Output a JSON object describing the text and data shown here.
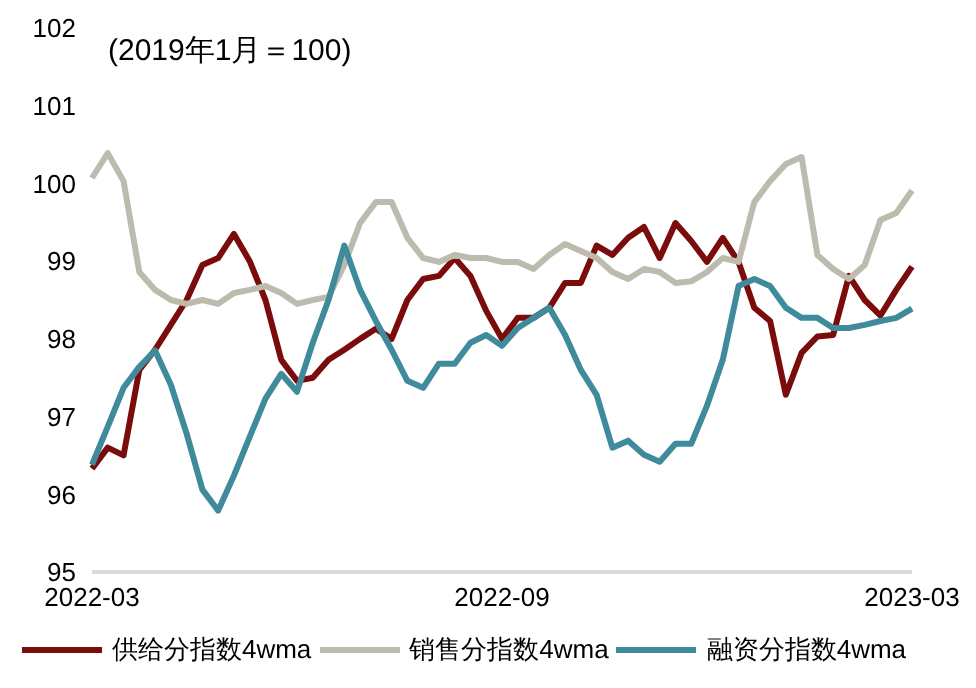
{
  "chart_data": {
    "type": "line",
    "title": "(2019年1月＝100)",
    "categories": [
      "2022-03",
      null,
      null,
      null,
      null,
      null,
      null,
      null,
      null,
      null,
      null,
      null,
      null,
      null,
      null,
      null,
      null,
      null,
      null,
      null,
      null,
      null,
      null,
      null,
      null,
      null,
      "2022-09",
      null,
      null,
      null,
      null,
      null,
      null,
      null,
      null,
      null,
      null,
      null,
      null,
      null,
      null,
      null,
      null,
      null,
      null,
      null,
      null,
      null,
      null,
      null,
      null,
      null,
      "2023-03"
    ],
    "series": [
      {
        "name": "供给分指数4wma",
        "color": "#7b0c0c",
        "values": [
          96.33,
          96.6,
          96.5,
          97.6,
          97.86,
          98.18,
          98.5,
          98.95,
          99.04,
          99.35,
          99.0,
          98.5,
          97.73,
          97.46,
          97.5,
          97.73,
          97.86,
          98.0,
          98.13,
          98.0,
          98.5,
          98.77,
          98.81,
          99.04,
          98.81,
          98.36,
          98.0,
          98.27,
          98.27,
          98.4,
          98.72,
          98.72,
          99.2,
          99.08,
          99.3,
          99.44,
          99.04,
          99.49,
          99.26,
          98.99,
          99.3,
          98.99,
          98.4,
          98.23,
          97.28,
          97.82,
          98.03,
          98.05,
          98.81,
          98.5,
          98.3,
          98.63,
          98.93
        ]
      },
      {
        "name": "销售分指数4wma",
        "color": "#bdbbad",
        "values": [
          100.07,
          100.39,
          100.03,
          98.86,
          98.63,
          98.5,
          98.45,
          98.5,
          98.45,
          98.59,
          98.63,
          98.68,
          98.59,
          98.45,
          98.5,
          98.54,
          98.95,
          99.49,
          99.76,
          99.76,
          99.3,
          99.04,
          98.99,
          99.08,
          99.04,
          99.04,
          98.99,
          98.99,
          98.9,
          99.08,
          99.22,
          99.13,
          99.04,
          98.86,
          98.77,
          98.9,
          98.86,
          98.72,
          98.74,
          98.86,
          99.04,
          98.99,
          99.76,
          100.03,
          100.25,
          100.34,
          99.08,
          98.9,
          98.77,
          98.95,
          99.53,
          99.62,
          99.91
        ]
      },
      {
        "name": "融资分指数4wma",
        "color": "#3f8b9c",
        "values": [
          96.38,
          96.87,
          97.37,
          97.64,
          97.85,
          97.41,
          96.78,
          96.06,
          95.79,
          96.24,
          96.74,
          97.23,
          97.55,
          97.32,
          97.95,
          98.5,
          99.2,
          98.63,
          98.23,
          97.86,
          97.46,
          97.37,
          97.68,
          97.68,
          97.95,
          98.05,
          97.91,
          98.14,
          98.27,
          98.4,
          98.05,
          97.6,
          97.28,
          96.6,
          96.69,
          96.51,
          96.42,
          96.65,
          96.65,
          97.14,
          97.73,
          98.68,
          98.77,
          98.68,
          98.4,
          98.27,
          98.27,
          98.14,
          98.14,
          98.18,
          98.23,
          98.27,
          98.39
        ]
      }
    ],
    "ylim": [
      95,
      102
    ],
    "yticks": [
      95,
      96,
      97,
      98,
      99,
      100,
      101,
      102
    ],
    "legend": "bottom",
    "marker": "none",
    "line_style": "solid"
  }
}
